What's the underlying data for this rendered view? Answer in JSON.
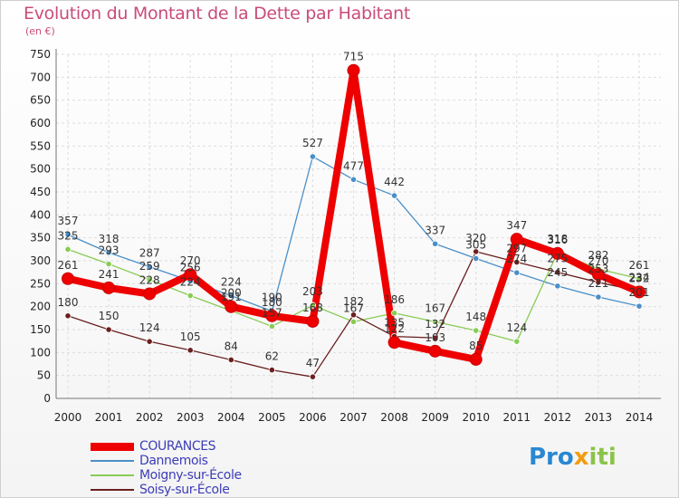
{
  "title": "Evolution du Montant de la Dette par Habitant",
  "unit": "(en €)",
  "chart_data": {
    "type": "line",
    "title": "Evolution du Montant de la Dette par Habitant",
    "ylabel": "(en €)",
    "xlabel": "",
    "ylim": [
      0,
      750
    ],
    "yticks": [
      0,
      50,
      100,
      150,
      200,
      250,
      300,
      350,
      400,
      450,
      500,
      550,
      600,
      650,
      700,
      750
    ],
    "categories": [
      "2000",
      "2001",
      "2002",
      "2003",
      "2004",
      "2005",
      "2006",
      "2007",
      "2008",
      "2009",
      "2010",
      "2011",
      "2012",
      "2013",
      "2014"
    ],
    "grid": true,
    "series": [
      {
        "name": "COURANCES",
        "color": "#ee0000",
        "values": [
          261,
          241,
          228,
          270,
          200,
          180,
          168,
          715,
          122,
          103,
          85,
          347,
          316,
          270,
          232
        ],
        "labels": [
          "261",
          "241",
          "228",
          "270",
          "200",
          "180",
          "168",
          "715",
          "122",
          "103",
          "85",
          "347",
          "316",
          "270",
          "232"
        ]
      },
      {
        "name": "Dannemois",
        "color": "#4a8fc8",
        "values": [
          357,
          318,
          287,
          256,
          224,
          190,
          527,
          477,
          442,
          337,
          305,
          274,
          245,
          221,
          201
        ],
        "labels": [
          "357",
          "318",
          "287",
          "256",
          "224",
          "190",
          "527",
          "477",
          "442",
          "337",
          "305",
          "274",
          "245",
          "221",
          "201"
        ]
      },
      {
        "name": "Moigny-sur-École",
        "color": "#88cc55",
        "values": [
          325,
          293,
          259,
          224,
          191,
          157,
          203,
          167,
          186,
          167,
          148,
          124,
          318,
          282,
          261
        ],
        "labels": [
          "325",
          "293",
          "259",
          "224",
          "191",
          "157",
          "203",
          "167",
          "186",
          "167",
          "148",
          "124",
          "318",
          "282",
          "261"
        ]
      },
      {
        "name": "Soisy-sur-École",
        "color": "#6b1f1f",
        "values": [
          180,
          150,
          124,
          105,
          84,
          62,
          47,
          182,
          135,
          132,
          320,
          297,
          275,
          253,
          234
        ],
        "labels": [
          "180",
          "150",
          "124",
          "105",
          "84",
          "62",
          "47",
          "182",
          "135",
          "132",
          "320",
          "297",
          "275",
          "253",
          "234"
        ]
      }
    ]
  },
  "legend": [
    {
      "label": "COURANCES",
      "color": "#ee0000"
    },
    {
      "label": "Dannemois",
      "color": "#4a8fc8"
    },
    {
      "label": "Moigny-sur-École",
      "color": "#88cc55"
    },
    {
      "label": "Soisy-sur-École",
      "color": "#6b1f1f"
    }
  ],
  "logo": {
    "part1": "Pro",
    "part2": "x",
    "part3": "iti"
  }
}
